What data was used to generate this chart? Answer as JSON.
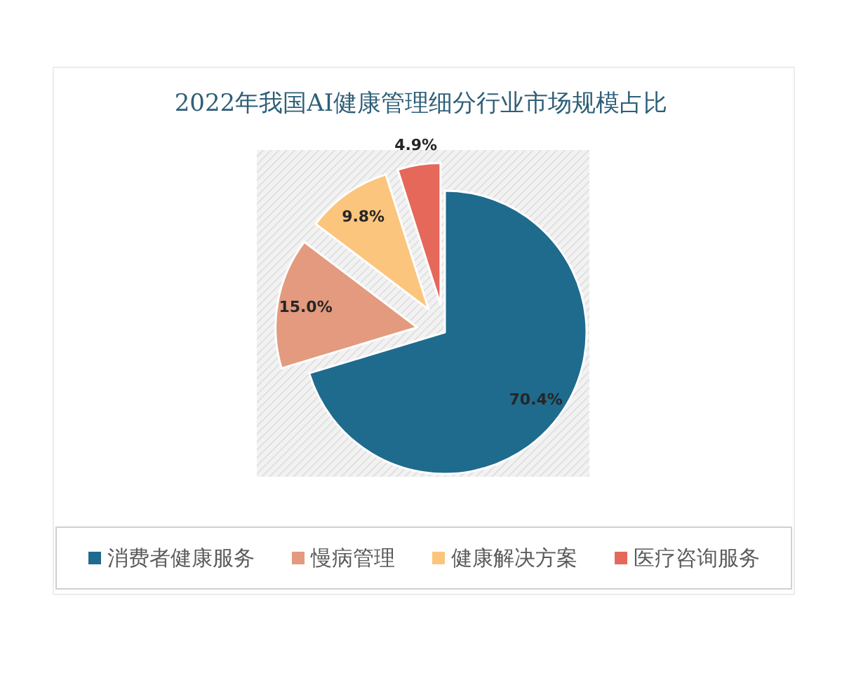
{
  "chart_data": {
    "type": "pie",
    "title": "2022年我国AI健康管理细分行业市场规模占比",
    "categories": [
      "消费者健康服务",
      "慢病管理",
      "健康解决方案",
      "医疗咨询服务"
    ],
    "values": [
      70.4,
      15.0,
      9.8,
      4.9
    ],
    "colors": [
      "#1f6b8e",
      "#e39a7e",
      "#fbc57d",
      "#e5685b"
    ],
    "value_labels": [
      "70.4%",
      "15.0%",
      "9.8%",
      "4.9%"
    ],
    "legend": "bottom"
  }
}
